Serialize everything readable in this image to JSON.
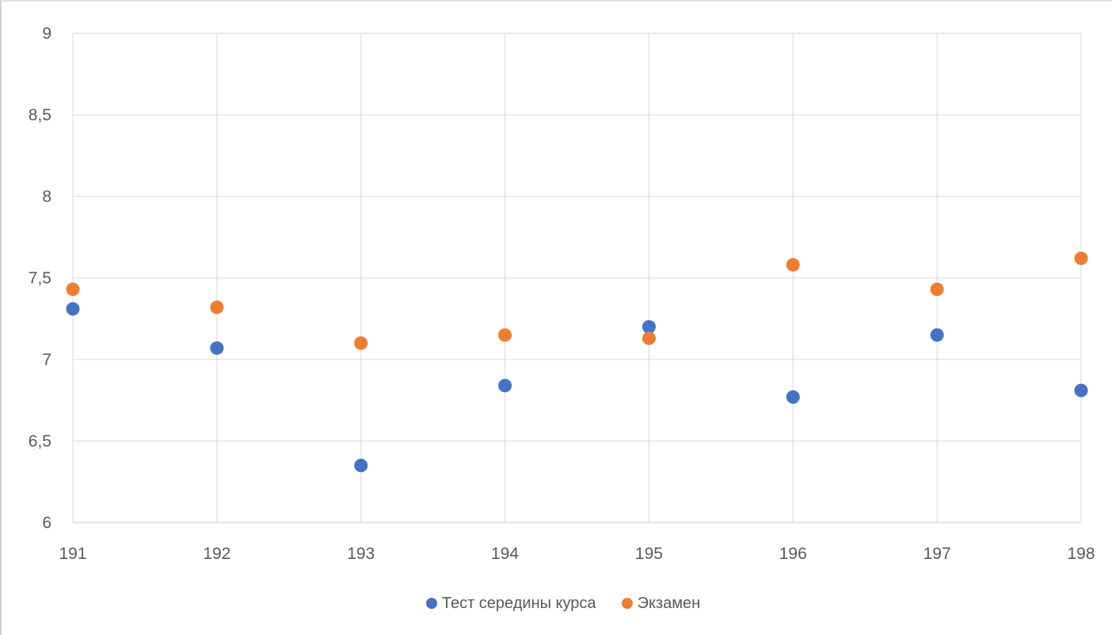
{
  "chart_data": {
    "type": "scatter",
    "title": "",
    "xlabel": "",
    "ylabel": "",
    "xlim": [
      191,
      198
    ],
    "ylim": [
      6,
      9
    ],
    "x_ticks": [
      "191",
      "192",
      "193",
      "194",
      "195",
      "196",
      "197",
      "198"
    ],
    "y_ticks": [
      "6",
      "6,5",
      "7",
      "7,5",
      "8",
      "8,5",
      "9"
    ],
    "grid": true,
    "legend_position": "bottom",
    "series": [
      {
        "name": "Тест середины курса",
        "color": "#4472C4",
        "x": [
          191,
          192,
          193,
          194,
          195,
          196,
          197,
          198
        ],
        "y": [
          7.31,
          7.07,
          6.35,
          6.84,
          7.2,
          6.77,
          7.15,
          6.81
        ]
      },
      {
        "name": "Экзамен",
        "color": "#ED7D31",
        "x": [
          191,
          192,
          193,
          194,
          195,
          196,
          197,
          198
        ],
        "y": [
          7.43,
          7.32,
          7.1,
          7.15,
          7.13,
          7.58,
          7.43,
          7.62
        ]
      }
    ]
  }
}
